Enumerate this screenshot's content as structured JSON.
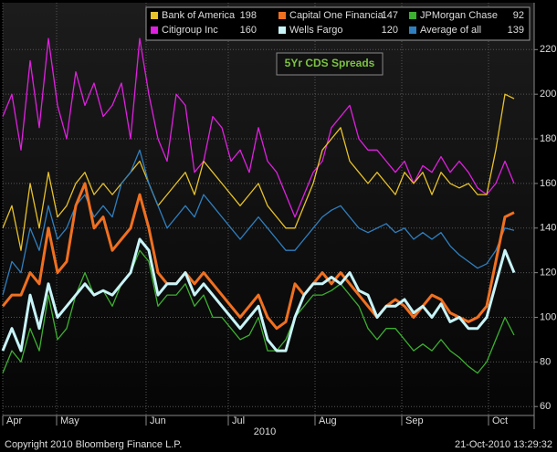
{
  "chart_data": {
    "type": "line",
    "title": "5Yr CDS Spreads",
    "xlim": [
      0,
      56
    ],
    "xticks": [
      {
        "value": 0,
        "label": "Apr"
      },
      {
        "value": 5.9,
        "label": "May"
      },
      {
        "value": 15.7,
        "label": "Jun"
      },
      {
        "value": 24.7,
        "label": "Jul"
      },
      {
        "value": 34.2,
        "label": "Aug"
      },
      {
        "value": 43.7,
        "label": "Sep"
      },
      {
        "value": 53.2,
        "label": "Oct"
      }
    ],
    "year_label": "2010",
    "ylim": [
      56,
      241
    ],
    "yticks": [
      60,
      80,
      100,
      120,
      140,
      160,
      180,
      200,
      220
    ],
    "grid": true,
    "legend": "top-right",
    "footer_left": "Copyright 2010 Bloomberg Finance L.P.",
    "footer_right": "21-Oct-2010 13:29:32",
    "series": [
      {
        "name": "Bank of America",
        "last": 198,
        "color": "#e8c22a",
        "width": 1.3,
        "values": [
          140,
          150,
          130,
          160,
          140,
          165,
          145,
          150,
          160,
          165,
          155,
          160,
          155,
          160,
          165,
          170,
          160,
          150,
          155,
          160,
          165,
          155,
          170,
          165,
          160,
          155,
          150,
          155,
          160,
          150,
          145,
          140,
          140,
          150,
          160,
          175,
          180,
          185,
          170,
          165,
          160,
          165,
          160,
          155,
          165,
          160,
          165,
          155,
          165,
          160,
          158,
          160,
          155,
          155,
          175,
          200,
          198
        ]
      },
      {
        "name": "Capital One Financial",
        "last": 147,
        "color": "#f07020",
        "width": 3,
        "values": [
          105,
          110,
          110,
          120,
          115,
          140,
          120,
          125,
          150,
          160,
          140,
          145,
          130,
          135,
          140,
          155,
          140,
          120,
          115,
          115,
          120,
          115,
          120,
          115,
          110,
          105,
          100,
          105,
          110,
          100,
          95,
          98,
          115,
          110,
          115,
          120,
          115,
          120,
          115,
          110,
          105,
          100,
          105,
          108,
          105,
          100,
          105,
          110,
          108,
          102,
          100,
          98,
          100,
          105,
          125,
          145,
          147
        ]
      },
      {
        "name": "JPMorgan Chase",
        "last": 92,
        "color": "#3cb030",
        "width": 1.3,
        "values": [
          75,
          85,
          80,
          95,
          85,
          110,
          90,
          95,
          110,
          120,
          110,
          112,
          105,
          115,
          120,
          130,
          125,
          105,
          110,
          110,
          115,
          105,
          110,
          100,
          100,
          95,
          90,
          92,
          100,
          85,
          85,
          90,
          100,
          105,
          110,
          110,
          112,
          115,
          110,
          105,
          95,
          90,
          95,
          95,
          90,
          85,
          88,
          85,
          90,
          85,
          82,
          78,
          75,
          80,
          90,
          100,
          92
        ]
      },
      {
        "name": "Citigroup Inc",
        "last": 160,
        "color": "#e020e0",
        "width": 1.3,
        "values": [
          190,
          200,
          175,
          215,
          185,
          225,
          195,
          180,
          210,
          195,
          205,
          190,
          195,
          205,
          180,
          225,
          200,
          180,
          170,
          200,
          195,
          165,
          170,
          190,
          185,
          170,
          175,
          165,
          185,
          170,
          165,
          155,
          145,
          155,
          165,
          170,
          185,
          190,
          195,
          180,
          175,
          175,
          170,
          165,
          170,
          160,
          168,
          165,
          172,
          165,
          170,
          165,
          158,
          155,
          160,
          170,
          160
        ]
      },
      {
        "name": "Wells Fargo",
        "last": 120,
        "color": "#c8f4f8",
        "width": 3,
        "values": [
          85,
          95,
          85,
          110,
          95,
          115,
          100,
          105,
          110,
          115,
          110,
          112,
          110,
          115,
          120,
          135,
          130,
          110,
          115,
          115,
          120,
          110,
          115,
          110,
          105,
          100,
          95,
          100,
          105,
          90,
          85,
          85,
          100,
          110,
          115,
          115,
          118,
          115,
          120,
          112,
          110,
          100,
          105,
          105,
          108,
          102,
          105,
          100,
          106,
          98,
          100,
          95,
          95,
          100,
          115,
          130,
          120
        ]
      },
      {
        "name": "Average of all",
        "last": 139,
        "color": "#2f7fc0",
        "width": 1.3,
        "values": [
          110,
          125,
          120,
          140,
          130,
          150,
          135,
          140,
          150,
          155,
          145,
          150,
          145,
          160,
          165,
          175,
          160,
          150,
          140,
          145,
          150,
          145,
          155,
          150,
          145,
          140,
          135,
          140,
          145,
          140,
          135,
          130,
          130,
          135,
          140,
          145,
          148,
          150,
          145,
          140,
          138,
          140,
          142,
          138,
          140,
          135,
          138,
          135,
          138,
          132,
          128,
          125,
          122,
          124,
          130,
          140,
          139
        ]
      }
    ]
  }
}
